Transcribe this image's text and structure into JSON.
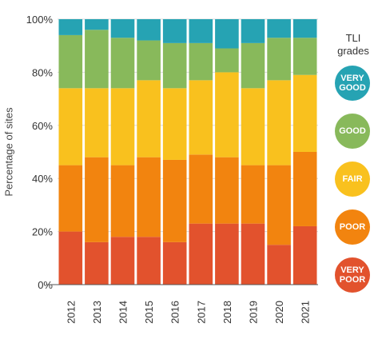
{
  "chart_data": {
    "type": "bar",
    "stacked": true,
    "categories": [
      "2012",
      "2013",
      "2014",
      "2015",
      "2016",
      "2017",
      "2018",
      "2019",
      "2020",
      "2021"
    ],
    "ylabel": "Percentage of sites",
    "ylim": [
      0,
      100
    ],
    "yticks": [
      "0%",
      "20%",
      "40%",
      "60%",
      "80%",
      "100%"
    ],
    "series": [
      {
        "name": "VERY POOR",
        "color": "#e2522d",
        "values": [
          20,
          16,
          18,
          18,
          16,
          23,
          23,
          23,
          15,
          22
        ]
      },
      {
        "name": "POOR",
        "color": "#f2840f",
        "values": [
          25,
          32,
          27,
          30,
          31,
          26,
          25,
          22,
          30,
          28
        ]
      },
      {
        "name": "FAIR",
        "color": "#f9c11e",
        "values": [
          29,
          26,
          29,
          29,
          27,
          28,
          32,
          29,
          32,
          29
        ]
      },
      {
        "name": "GOOD",
        "color": "#88b95b",
        "values": [
          20,
          22,
          19,
          15,
          17,
          14,
          9,
          17,
          16,
          14
        ]
      },
      {
        "name": "VERY GOOD",
        "color": "#26a3b3",
        "values": [
          6,
          4,
          7,
          8,
          9,
          9,
          11,
          9,
          7,
          7
        ]
      }
    ],
    "legend": {
      "title": "TLI\ngrades",
      "placement": "right",
      "labels": [
        "VERY\nGOOD",
        "GOOD",
        "FAIR",
        "POOR",
        "VERY\nPOOR"
      ]
    }
  }
}
